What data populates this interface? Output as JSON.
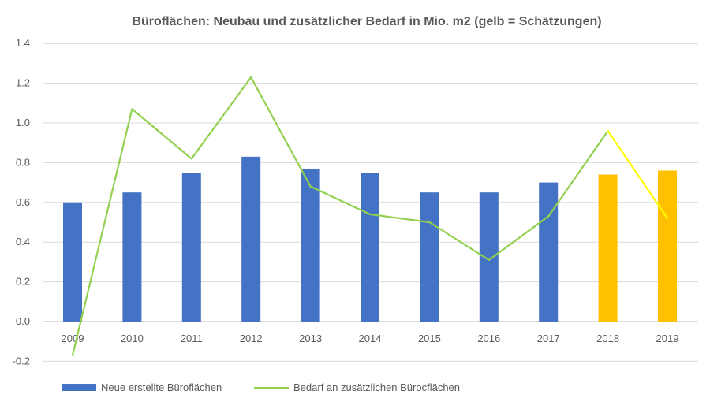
{
  "chart_data": {
    "type": "bar",
    "title": "Büroflächen: Neubau und zusätzlicher Bedarf in Mio. m2 (gelb = Schätzungen)",
    "xlabel": "",
    "ylabel": "",
    "categories": [
      "2009",
      "2010",
      "2011",
      "2012",
      "2013",
      "2014",
      "2015",
      "2016",
      "2017",
      "2018",
      "2019"
    ],
    "ylim": [
      -0.2,
      1.4
    ],
    "yticks": [
      "-0.2",
      "0.0",
      "0.2",
      "0.4",
      "0.6",
      "0.8",
      "1.0",
      "1.2",
      "1.4"
    ],
    "grid": true,
    "legend_placement": "bottom",
    "series": [
      {
        "name": "Neue erstellte Büroflächen",
        "type": "bar",
        "color": "#4472C4",
        "estimate_color": "#FFC000",
        "values": [
          0.6,
          0.65,
          0.75,
          0.83,
          0.77,
          0.75,
          0.65,
          0.65,
          0.7,
          0.74,
          0.76
        ],
        "estimated": [
          false,
          false,
          false,
          false,
          false,
          false,
          false,
          false,
          false,
          true,
          true
        ]
      },
      {
        "name": "Bedarf an zusätzlichen Bürocflächen",
        "type": "line",
        "color": "#92D050",
        "estimate_color": "#FFFF00",
        "values": [
          -0.17,
          1.07,
          0.82,
          1.23,
          0.68,
          0.54,
          0.5,
          0.31,
          0.53,
          0.96,
          0.52
        ],
        "estimated": [
          false,
          false,
          false,
          false,
          false,
          false,
          false,
          false,
          false,
          false,
          true
        ]
      }
    ]
  }
}
